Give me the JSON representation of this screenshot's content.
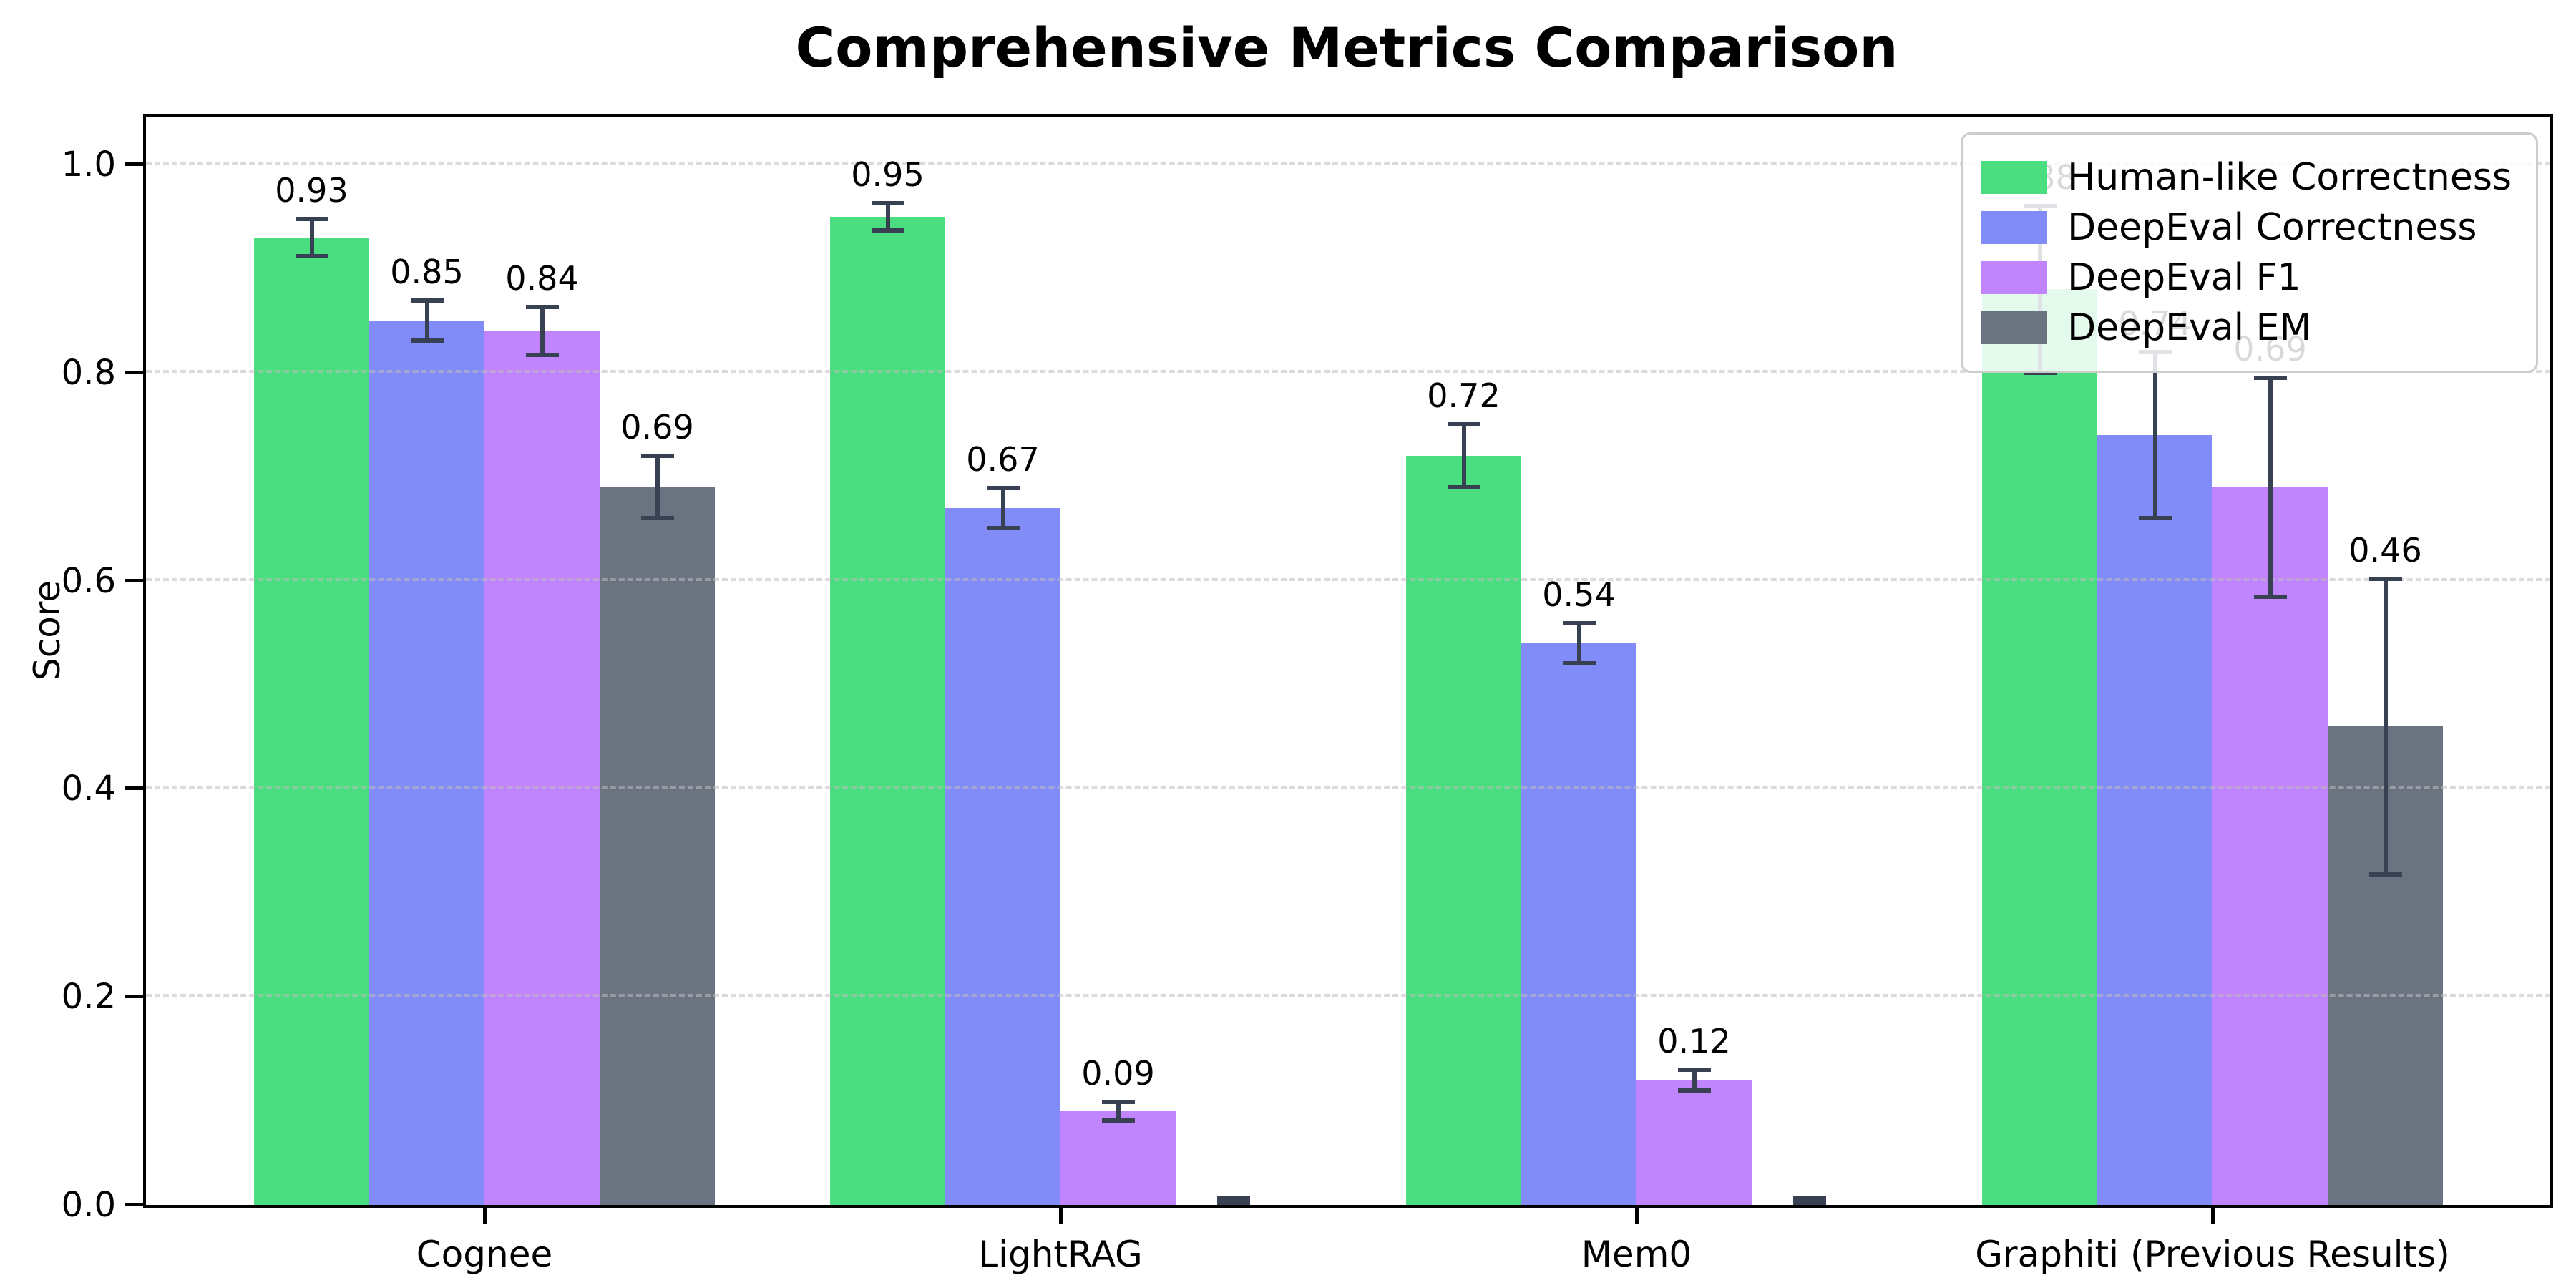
{
  "title": "Comprehensive Metrics Comparison",
  "chart_data": {
    "type": "bar",
    "title": "Comprehensive Metrics Comparison",
    "xlabel": "",
    "ylabel": "Score",
    "ylim": [
      0,
      1.046
    ],
    "yticks": [
      0.0,
      0.2,
      0.4,
      0.6,
      0.8,
      1.0
    ],
    "ytick_labels": [
      "0.0",
      "0.2",
      "0.4",
      "0.6",
      "0.8",
      "1.0"
    ],
    "grid": "horizontal-dashed",
    "legend_position": "upper-right",
    "error_bar_color": "#374151",
    "categories": [
      "Cognee",
      "LightRAG",
      "Mem0",
      "Graphiti (Previous Results)"
    ],
    "series": [
      {
        "name": "Human-like Correctness",
        "color": "#4ade80",
        "values": [
          0.93,
          0.95,
          0.72,
          0.88
        ],
        "errors": [
          0.016,
          0.011,
          0.028,
          0.078
        ],
        "labels": [
          "0.93",
          "0.95",
          "0.72",
          "0.88"
        ]
      },
      {
        "name": "DeepEval Correctness",
        "color": "#818cf8",
        "values": [
          0.85,
          0.67,
          0.54,
          0.74
        ],
        "errors": [
          0.017,
          0.017,
          0.017,
          0.078
        ],
        "labels": [
          "0.85",
          "0.67",
          "0.54",
          "0.74"
        ]
      },
      {
        "name": "DeepEval F1",
        "color": "#c084fc",
        "values": [
          0.84,
          0.09,
          0.12,
          0.69
        ],
        "errors": [
          0.021,
          0.007,
          0.008,
          0.103
        ],
        "labels": [
          "0.84",
          "0.09",
          "0.12",
          "0.69"
        ]
      },
      {
        "name": "DeepEval EM",
        "color": "#6b7280",
        "values": [
          0.69,
          0.0,
          0.0,
          0.46
        ],
        "errors": [
          0.028,
          0.004,
          0.004,
          0.14
        ],
        "labels": [
          "0.69",
          "",
          "",
          "0.46"
        ]
      }
    ]
  }
}
